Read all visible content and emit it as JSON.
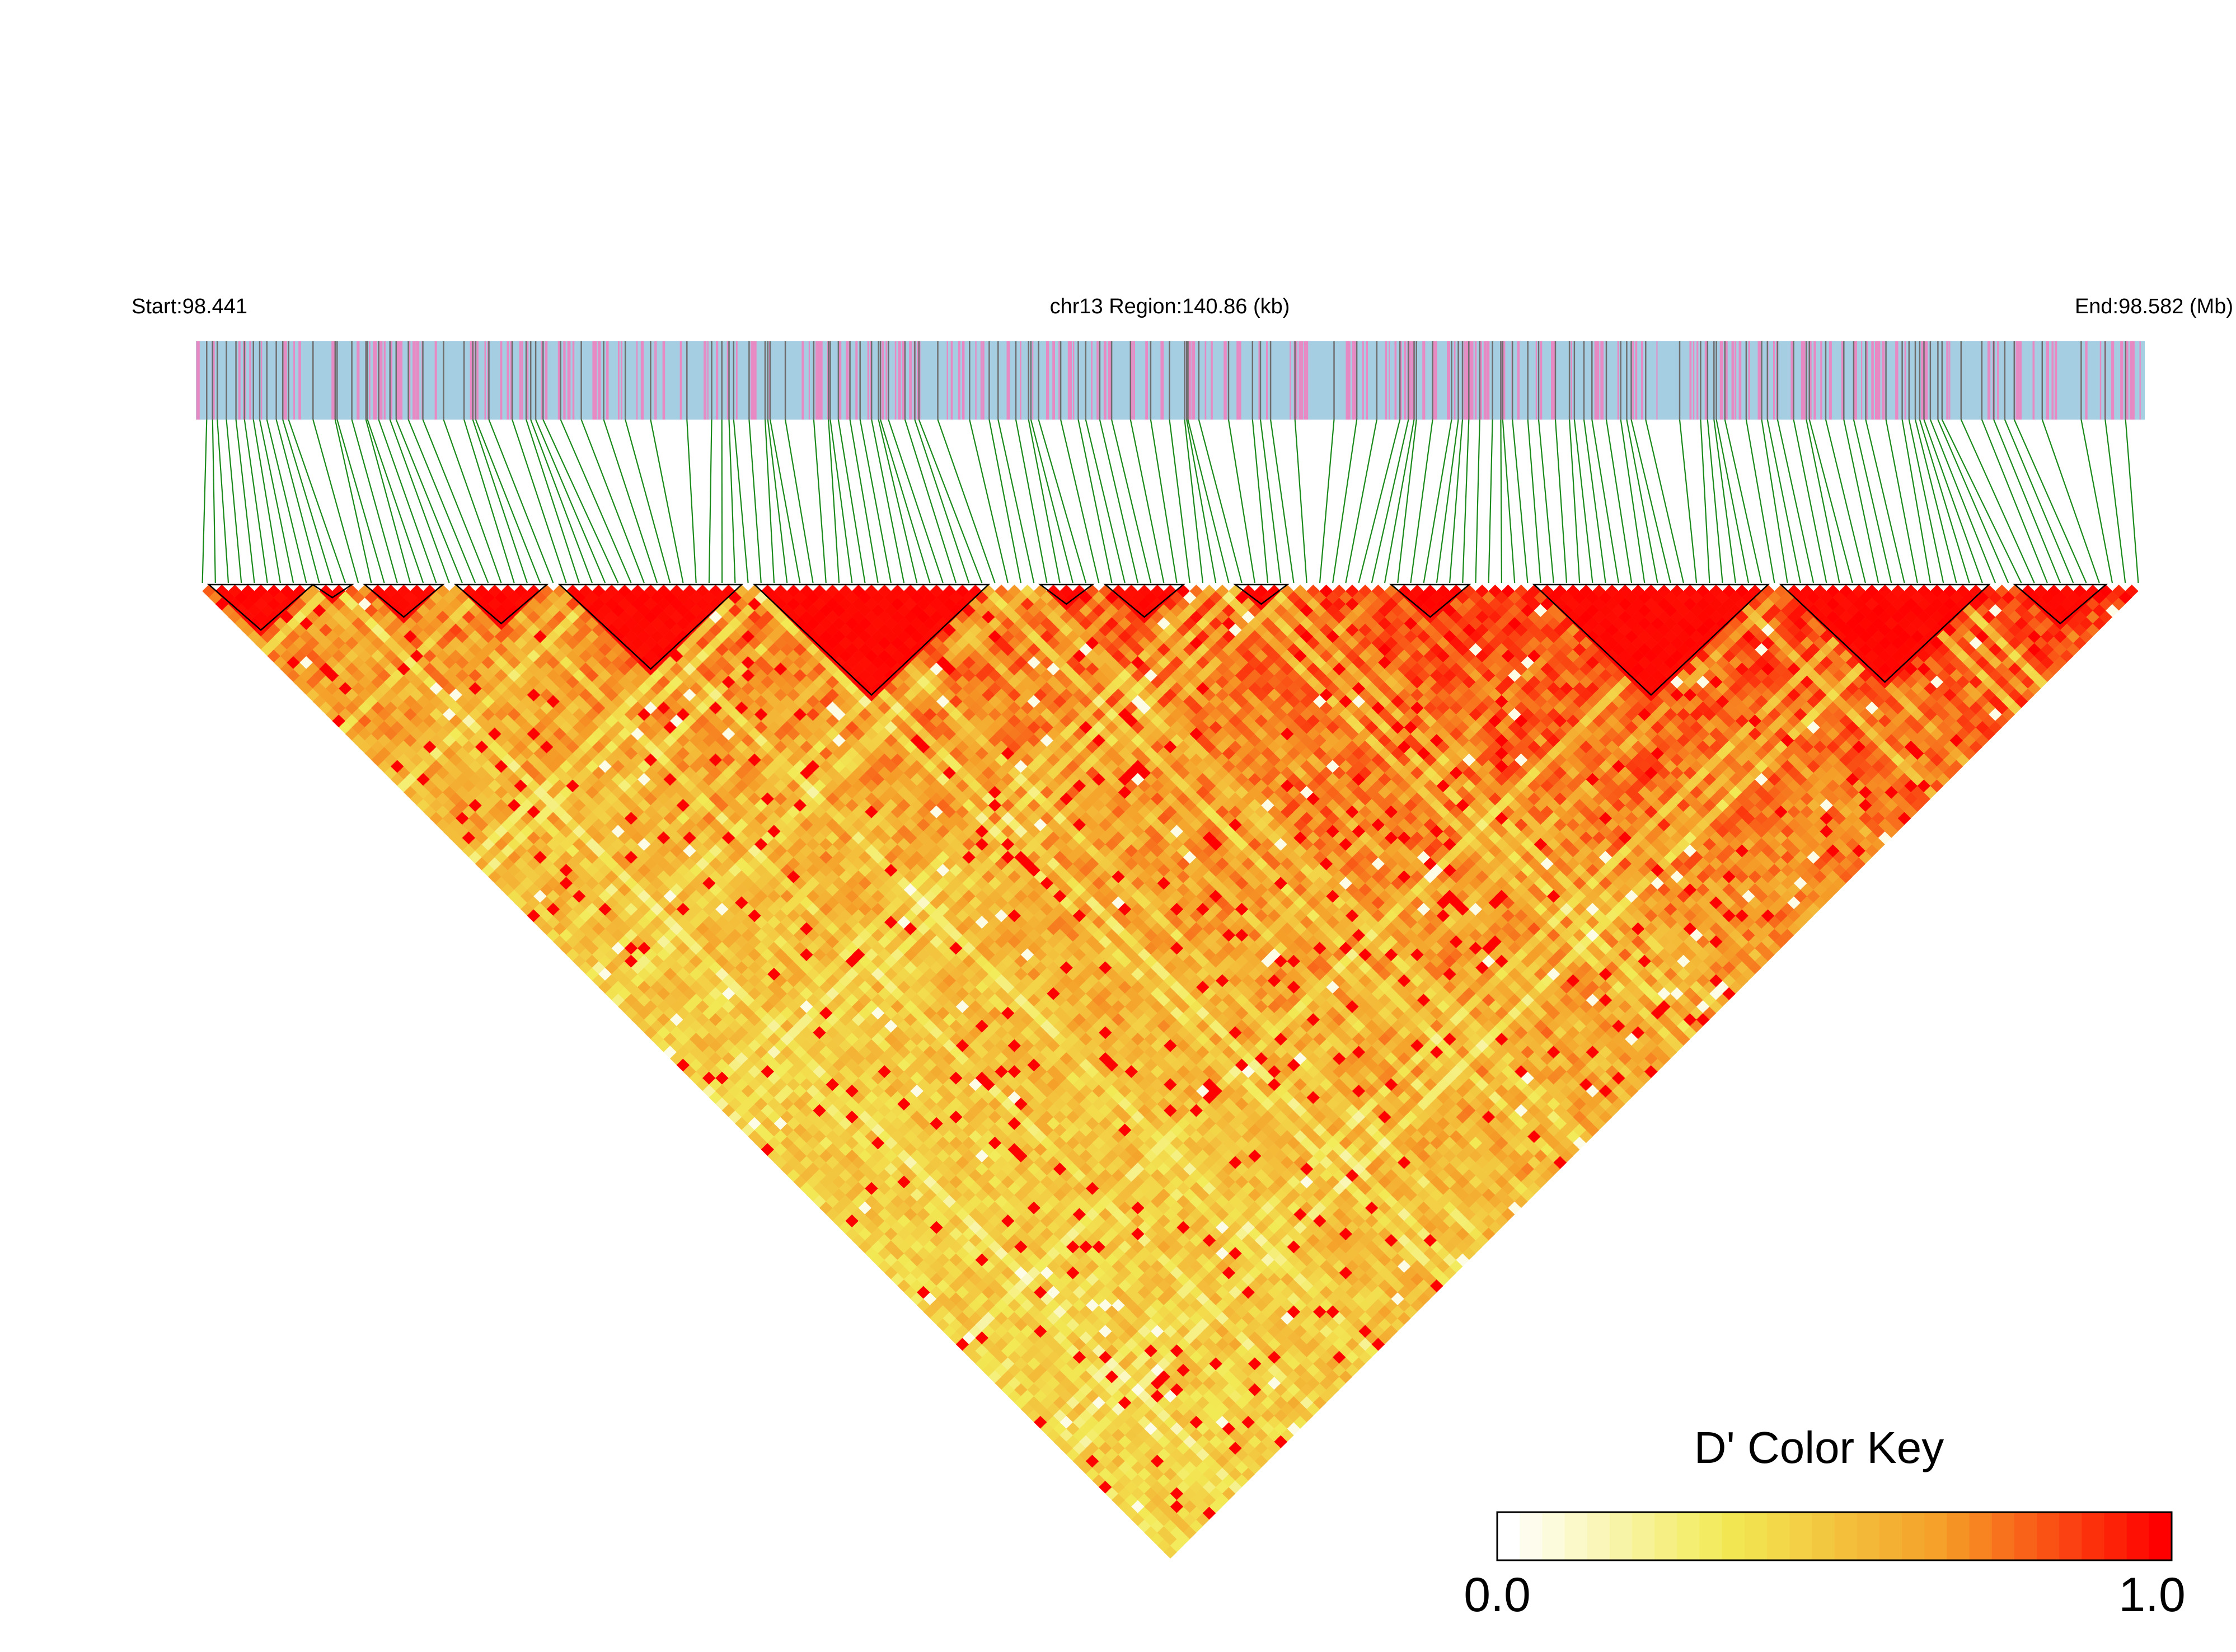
{
  "header": {
    "start_label": "Start:98.441",
    "region_label": "chr13 Region:140.86 (kb)",
    "end_label": "End:98.582 (Mb)"
  },
  "region": {
    "chromosome": "chr13",
    "start_mb": 98.441,
    "end_mb": 98.582,
    "length_kb": 140.86
  },
  "heatmap": {
    "measure": "D'",
    "snp_count": 150,
    "colors": {
      "track_background": "#a6cee3",
      "gene_stripe": "#e78ac3",
      "snp_tick": "#6e6e6e",
      "connector": "#1a8a1a",
      "block_outline": "#000000"
    },
    "ld_blocks": [
      [
        1,
        8
      ],
      [
        9,
        11
      ],
      [
        13,
        18
      ],
      [
        20,
        26
      ],
      [
        28,
        41
      ],
      [
        43,
        60
      ],
      [
        65,
        68
      ],
      [
        70,
        75
      ],
      [
        80,
        83
      ],
      [
        92,
        97
      ],
      [
        103,
        120
      ],
      [
        122,
        137
      ],
      [
        140,
        146
      ]
    ]
  },
  "legend": {
    "title": "D' Color Key",
    "min_label": "0.0",
    "max_label": "1.0",
    "min": 0.0,
    "max": 1.0,
    "colors": [
      "#ffffff",
      "#f2ea55",
      "#f59e28",
      "#ff0000"
    ]
  }
}
